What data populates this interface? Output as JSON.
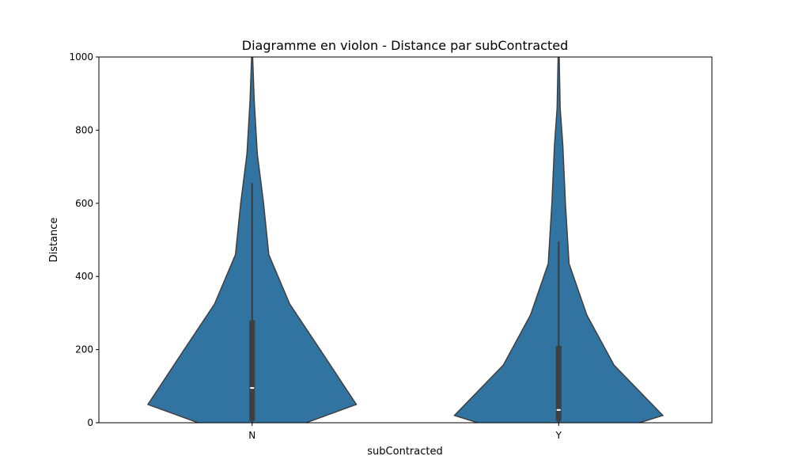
{
  "chart_data": {
    "type": "violin",
    "title": "Diagramme en violon - Distance par subContracted",
    "xlabel": "subContracted",
    "ylabel": "Distance",
    "ylim": [
      0,
      1000
    ],
    "yticks": [
      0,
      200,
      400,
      600,
      800,
      1000
    ],
    "categories": [
      "N",
      "Y"
    ],
    "color": "#3274a1",
    "edge_color": "#3f3f3f",
    "violins": [
      {
        "category": "N",
        "profile": [
          [
            -5,
            0.47
          ],
          [
            50,
            1.0
          ],
          [
            188,
            0.68
          ],
          [
            325,
            0.36
          ],
          [
            460,
            0.16
          ],
          [
            600,
            0.11
          ],
          [
            735,
            0.05
          ],
          [
            880,
            0.02
          ],
          [
            1000,
            0.005
          ]
        ],
        "whisker_low": 0,
        "q1": 5,
        "median": 95,
        "q3": 280,
        "whisker_high": 655
      },
      {
        "category": "Y",
        "profile": [
          [
            -5,
            0.72
          ],
          [
            20,
            1.0
          ],
          [
            158,
            0.53
          ],
          [
            295,
            0.27
          ],
          [
            435,
            0.1
          ],
          [
            600,
            0.065
          ],
          [
            760,
            0.04
          ],
          [
            860,
            0.015
          ],
          [
            1000,
            0.005
          ]
        ],
        "whisker_low": 0,
        "q1": 5,
        "median": 35,
        "q3": 210,
        "whisker_high": 495
      }
    ]
  }
}
